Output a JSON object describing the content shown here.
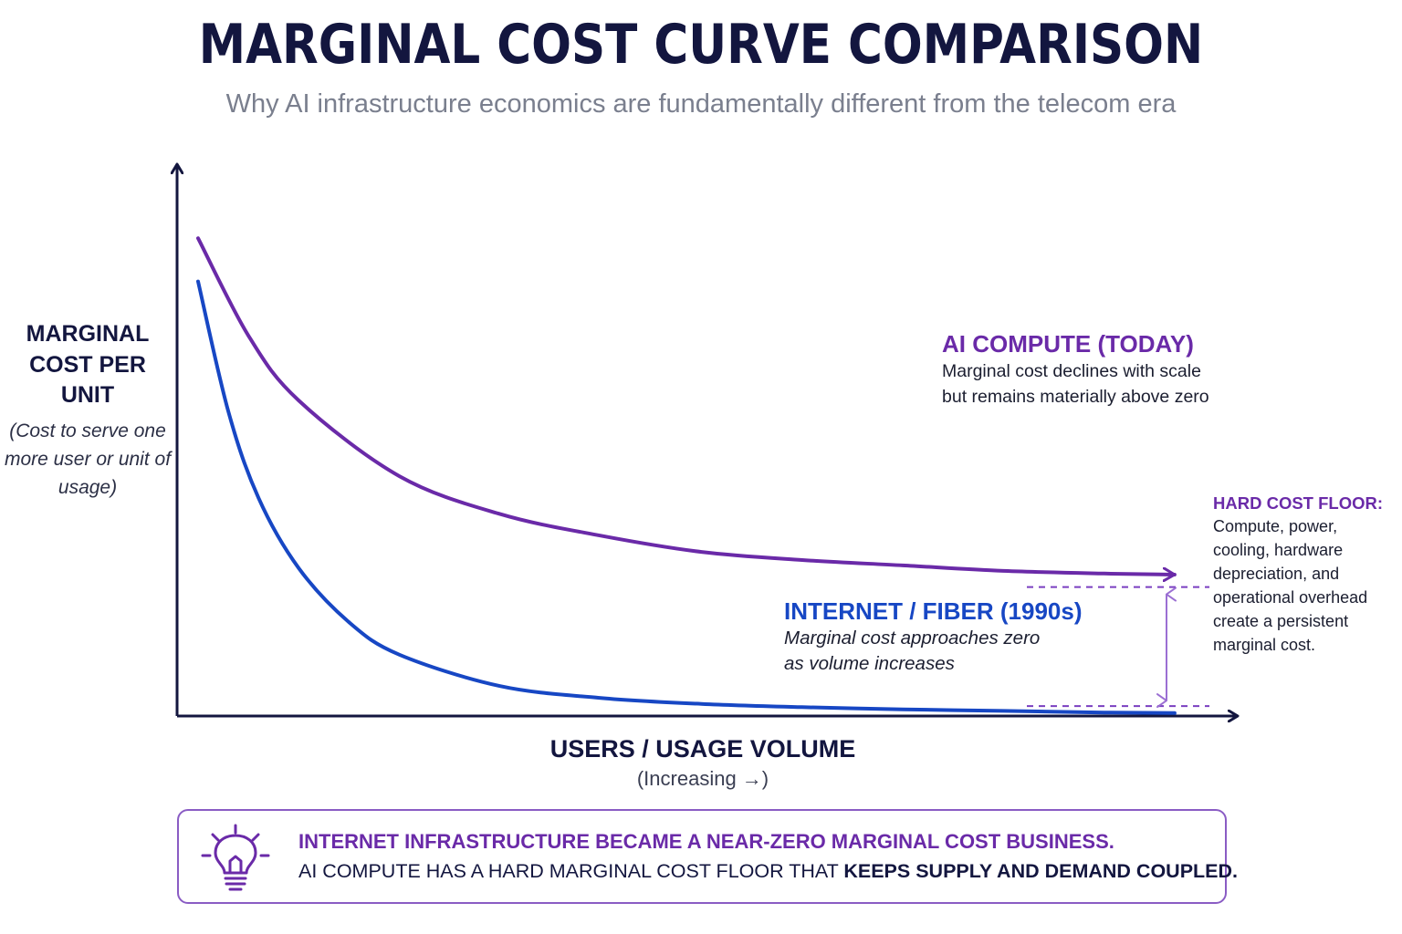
{
  "header": {
    "title": "MARGINAL COST CURVE COMPARISON",
    "subtitle": "Why AI infrastructure economics are fundamentally different from the telecom era"
  },
  "chart_data": {
    "type": "line",
    "title": "MARGINAL COST CURVE COMPARISON",
    "subtitle": "Why AI infrastructure economics are fundamentally different from the telecom era",
    "ylabel": "MARGINAL COST PER UNIT",
    "ylabel_note": "(Cost to serve one more user or unit of usage)",
    "xlabel": "USERS / USAGE VOLUME",
    "xlabel_note": "(Increasing →)",
    "axis_ticks": "none",
    "grid": false,
    "xlim": [
      0,
      100
    ],
    "ylim": [
      0,
      100
    ],
    "series": [
      {
        "name": "AI COMPUTE (TODAY)",
        "description": "Marginal cost declines with scale\nbut remains materially above zero",
        "color": "#6a2aa8",
        "x": [
          0,
          5,
          10,
          20,
          30,
          40,
          50,
          60,
          70,
          80,
          90,
          97
        ],
        "y": [
          88,
          70,
          58,
          44,
          37,
          33,
          30,
          28.5,
          27.5,
          26.5,
          26,
          25.8
        ]
      },
      {
        "name": "INTERNET / FIBER (1990s)",
        "description": "Marginal cost approaches zero\nas volume increases",
        "color": "#1747c4",
        "x": [
          0,
          3,
          6,
          10,
          15,
          20,
          30,
          40,
          50,
          60,
          70,
          80,
          90,
          97
        ],
        "y": [
          80,
          56,
          40,
          27,
          17,
          11,
          5.2,
          3,
          1.9,
          1.3,
          0.9,
          0.6,
          0.3,
          0.2
        ]
      }
    ],
    "annotations": {
      "floor_title": "HARD COST FLOOR:",
      "floor_text": "Compute, power,\ncooling, hardware\ndepreciation, and\noperational overhead\ncreate a persistent\nmarginal cost.",
      "floor_upper": 23.5,
      "floor_lower": 1.5
    }
  },
  "callout": {
    "line1": "INTERNET INFRASTRUCTURE BECAME A NEAR-ZERO MARGINAL COST BUSINESS.",
    "line2_plain": "AI COMPUTE HAS A HARD MARGINAL COST FLOOR THAT ",
    "line2_bold": "KEEPS SUPPLY AND DEMAND COUPLED."
  },
  "colors": {
    "navy": "#13163f",
    "purple": "#6a2aa8",
    "blue": "#1747c4",
    "gray": "#7a7f8e",
    "floor_arrow": "#9b6fd3"
  },
  "icons": {
    "callout": "lightbulb-icon"
  }
}
